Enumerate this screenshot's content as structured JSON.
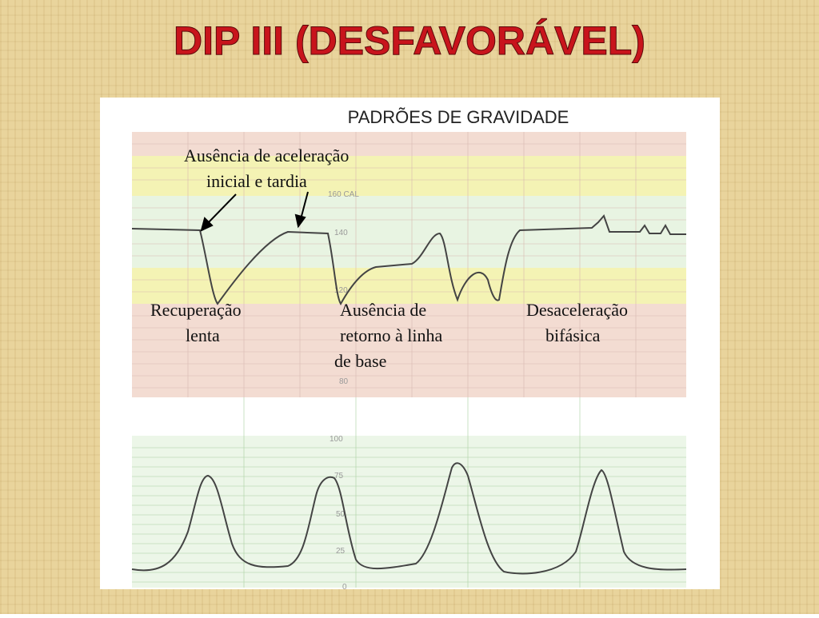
{
  "header": {
    "title": "DIP III  (DESFAVORÁVEL)"
  },
  "figure": {
    "title": "PADRÕES DE GRAVIDADE",
    "annotations": [
      {
        "lines": [
          "Ausência de aceleração",
          "inicial e tardia"
        ]
      },
      {
        "lines": [
          "Recuperação",
          "lenta"
        ]
      },
      {
        "lines": [
          "Ausência de",
          "retorno à linha",
          "de base"
        ]
      },
      {
        "lines": [
          "Desaceleração",
          "bifásica"
        ]
      }
    ],
    "fhr_scale": [
      "160 CAL",
      "140",
      "120",
      "80"
    ],
    "uterine_scale": [
      "100",
      "75",
      "50",
      "25",
      "0"
    ]
  }
}
